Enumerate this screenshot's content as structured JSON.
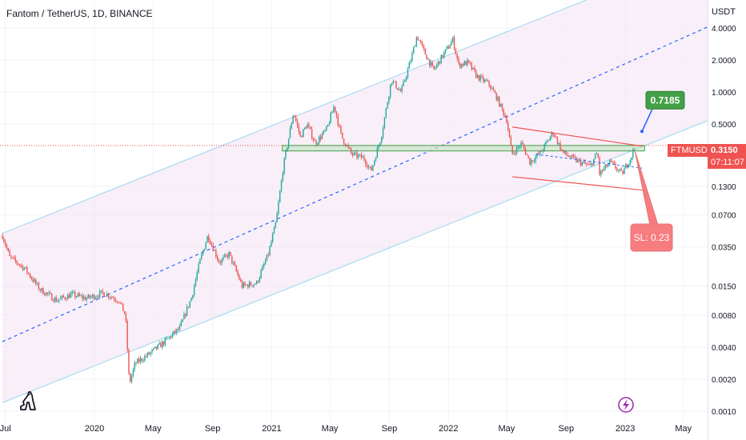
{
  "header": {
    "title": "Fantom / TetherUS, 1D, BINANCE"
  },
  "price_axis": {
    "unit": "USDT"
  },
  "chart_data": {
    "type": "line",
    "title": "Fantom / TetherUS, 1D, BINANCE",
    "xlabel": "",
    "ylabel": "USDT",
    "y_scale": "log",
    "ylim": [
      0.0009,
      5.2
    ],
    "xlim": [
      "2019-06-20",
      "2023-06-20"
    ],
    "x_ticks": [
      {
        "date": "2019-07-01",
        "label": "Jul"
      },
      {
        "date": "2020-01-01",
        "label": "2020"
      },
      {
        "date": "2020-05-01",
        "label": "May"
      },
      {
        "date": "2020-09-01",
        "label": "Sep"
      },
      {
        "date": "2021-01-01",
        "label": "2021"
      },
      {
        "date": "2021-05-01",
        "label": "May"
      },
      {
        "date": "2021-09-01",
        "label": "Sep"
      },
      {
        "date": "2022-01-01",
        "label": "2022"
      },
      {
        "date": "2022-05-01",
        "label": "May"
      },
      {
        "date": "2022-09-01",
        "label": "Sep"
      },
      {
        "date": "2023-01-01",
        "label": "2023"
      },
      {
        "date": "2023-05-01",
        "label": "May"
      }
    ],
    "y_ticks": [
      {
        "value": 4.0,
        "label": "4.0000"
      },
      {
        "value": 2.0,
        "label": "2.0000"
      },
      {
        "value": 1.0,
        "label": "1.0000"
      },
      {
        "value": 0.5,
        "label": "0.5000"
      },
      {
        "value": 0.13,
        "label": "0.1300"
      },
      {
        "value": 0.07,
        "label": "0.0700"
      },
      {
        "value": 0.035,
        "label": "0.0350"
      },
      {
        "value": 0.015,
        "label": "0.0150"
      },
      {
        "value": 0.008,
        "label": "0.0080"
      },
      {
        "value": 0.004,
        "label": "0.0040"
      },
      {
        "value": 0.002,
        "label": "0.0020"
      },
      {
        "value": 0.001,
        "label": "0.0010"
      }
    ],
    "series": [
      {
        "values": [
          [
            "2019-06-25",
            0.045
          ],
          [
            "2019-07-10",
            0.028
          ],
          [
            "2019-08-10",
            0.022
          ],
          [
            "2019-09-10",
            0.014
          ],
          [
            "2019-10-15",
            0.011
          ],
          [
            "2019-11-15",
            0.0125
          ],
          [
            "2019-12-15",
            0.0115
          ],
          [
            "2020-01-20",
            0.013
          ],
          [
            "2020-02-20",
            0.011
          ],
          [
            "2020-03-05",
            0.008
          ],
          [
            "2020-03-13",
            0.0018
          ],
          [
            "2020-03-25",
            0.0028
          ],
          [
            "2020-04-25",
            0.0035
          ],
          [
            "2020-05-25",
            0.0045
          ],
          [
            "2020-06-25",
            0.006
          ],
          [
            "2020-07-20",
            0.012
          ],
          [
            "2020-08-05",
            0.025
          ],
          [
            "2020-08-22",
            0.045
          ],
          [
            "2020-09-15",
            0.025
          ],
          [
            "2020-10-05",
            0.03
          ],
          [
            "2020-11-01",
            0.015
          ],
          [
            "2020-12-01",
            0.016
          ],
          [
            "2020-12-25",
            0.03
          ],
          [
            "2021-01-10",
            0.06
          ],
          [
            "2021-01-25",
            0.2
          ],
          [
            "2021-02-15",
            0.65
          ],
          [
            "2021-03-01",
            0.38
          ],
          [
            "2021-03-15",
            0.5
          ],
          [
            "2021-04-01",
            0.33
          ],
          [
            "2021-04-25",
            0.45
          ],
          [
            "2021-05-10",
            0.75
          ],
          [
            "2021-05-25",
            0.38
          ],
          [
            "2021-06-15",
            0.26
          ],
          [
            "2021-07-10",
            0.24
          ],
          [
            "2021-07-25",
            0.18
          ],
          [
            "2021-08-15",
            0.38
          ],
          [
            "2021-09-05",
            1.3
          ],
          [
            "2021-09-25",
            1.0
          ],
          [
            "2021-10-15",
            2.0
          ],
          [
            "2021-10-28",
            3.4
          ],
          [
            "2021-11-10",
            2.5
          ],
          [
            "2021-12-01",
            1.6
          ],
          [
            "2021-12-20",
            2.2
          ],
          [
            "2022-01-10",
            3.1
          ],
          [
            "2022-01-22",
            1.8
          ],
          [
            "2022-02-10",
            1.9
          ],
          [
            "2022-03-01",
            1.4
          ],
          [
            "2022-03-25",
            1.2
          ],
          [
            "2022-04-10",
            0.9
          ],
          [
            "2022-05-01",
            0.55
          ],
          [
            "2022-05-12",
            0.26
          ],
          [
            "2022-06-01",
            0.33
          ],
          [
            "2022-06-18",
            0.22
          ],
          [
            "2022-07-10",
            0.27
          ],
          [
            "2022-08-05",
            0.42
          ],
          [
            "2022-08-25",
            0.27
          ],
          [
            "2022-09-20",
            0.23
          ],
          [
            "2022-10-20",
            0.2
          ],
          [
            "2022-11-05",
            0.27
          ],
          [
            "2022-11-09",
            0.17
          ],
          [
            "2022-12-01",
            0.22
          ],
          [
            "2022-12-25",
            0.17
          ],
          [
            "2023-01-12",
            0.24
          ],
          [
            "2023-01-22",
            0.315
          ]
        ]
      }
    ],
    "channel": {
      "lower": [
        [
          "2019-06-25",
          0.0012
        ],
        [
          "2023-06-20",
          0.54
        ]
      ],
      "upper": [
        [
          "2019-06-25",
          0.047
        ],
        [
          "2023-06-20",
          21.0
        ]
      ],
      "middle": [
        [
          "2019-06-25",
          0.0045
        ],
        [
          "2023-06-20",
          4.1
        ]
      ]
    },
    "support_zone": {
      "from": "2021-01-23",
      "to": "2023-02-10",
      "low": 0.28,
      "high": 0.315
    },
    "falling_channel": {
      "upper": [
        [
          "2022-05-13",
          0.47
        ],
        [
          "2023-02-05",
          0.31
        ]
      ],
      "lower": [
        [
          "2022-05-13",
          0.16
        ],
        [
          "2023-02-05",
          0.12
        ]
      ]
    },
    "last_price_line": 0.315,
    "annotations": [
      {
        "text": "0.7185",
        "value": 0.7185,
        "kind": "target"
      },
      {
        "text": "SL: 0.23",
        "value": 0.23,
        "kind": "stop"
      }
    ],
    "price_label": {
      "symbol": "FTMUSDT",
      "price": "0.3150",
      "countdown": "07:11:07"
    },
    "grid": true,
    "legend": "none"
  },
  "colors": {
    "up": "#26a69a",
    "down": "#ef5350",
    "channel_fill": "#f3e5f5",
    "channel_line": "#9ad6ee",
    "midline": "#2962ff",
    "target": "#43a047",
    "stop": "#f77c80"
  }
}
